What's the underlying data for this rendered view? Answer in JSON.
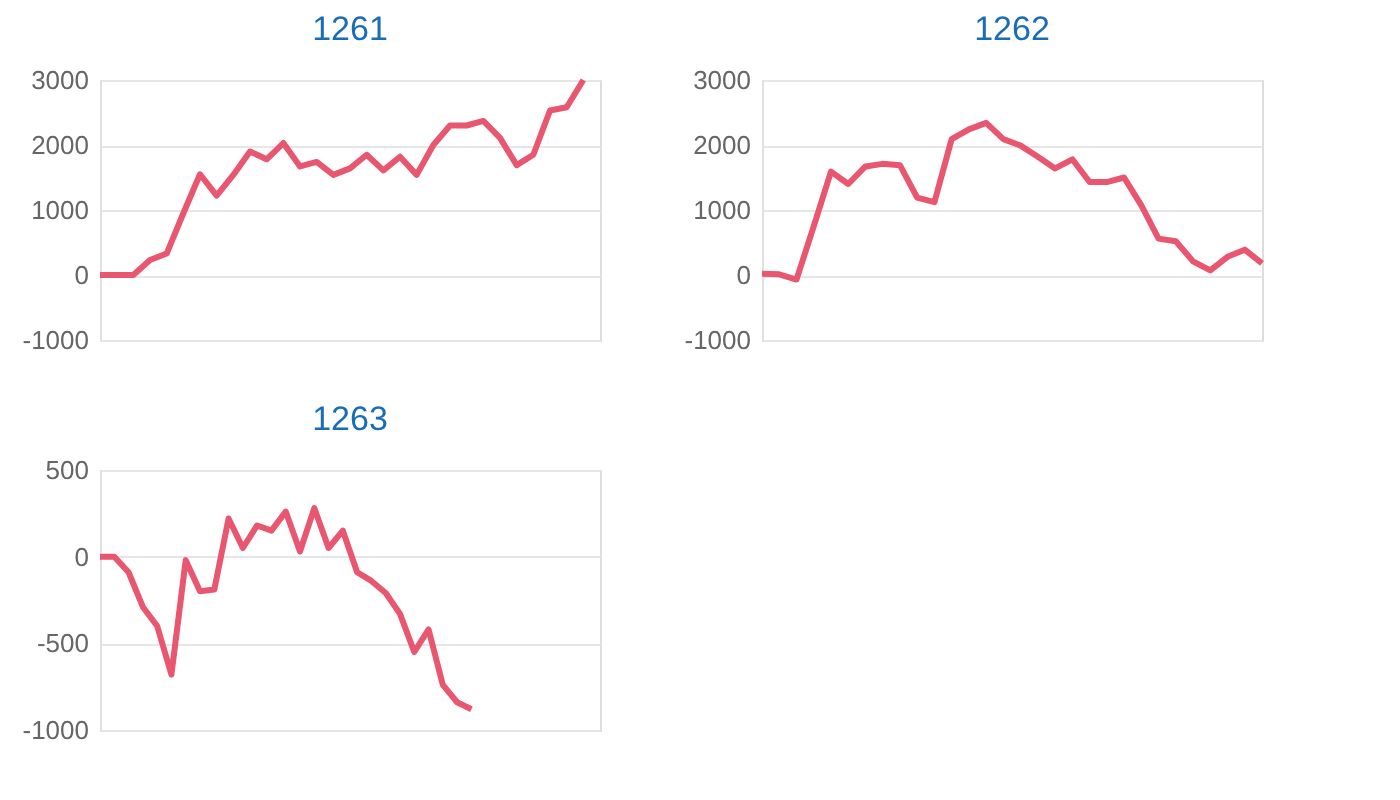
{
  "chart_data": [
    {
      "type": "line",
      "title": "1261",
      "categories": [
        null,
        null,
        null,
        null,
        null,
        null,
        null,
        null,
        null,
        null,
        null,
        null,
        null,
        null,
        null,
        null,
        null,
        null,
        null,
        null,
        null,
        null,
        null,
        null,
        null,
        null,
        null,
        null,
        null,
        null,
        null
      ],
      "series": [
        {
          "color": "#e9566f",
          "values": [
            0,
            0,
            0,
            230,
            330,
            950,
            1550,
            1220,
            1540,
            1900,
            1780,
            2030,
            1670,
            1740,
            1540,
            1640,
            1850,
            1610,
            1820,
            1540,
            2000,
            2300,
            2300,
            2370,
            2110,
            1690,
            1850,
            2530,
            2580,
            3000,
            null
          ]
        }
      ],
      "ylim": [
        -1000,
        3000
      ],
      "yticks": [
        -1000,
        0,
        1000,
        2000,
        3000
      ],
      "grid": "y",
      "tick_labels": "y",
      "marker": "none",
      "line_style": "solid"
    },
    {
      "type": "line",
      "title": "1262",
      "categories": [
        null,
        null,
        null,
        null,
        null,
        null,
        null,
        null,
        null,
        null,
        null,
        null,
        null,
        null,
        null,
        null,
        null,
        null,
        null,
        null,
        null,
        null,
        null,
        null,
        null,
        null,
        null,
        null,
        null,
        null
      ],
      "series": [
        {
          "color": "#e9566f",
          "values": [
            20,
            10,
            -70,
            750,
            1590,
            1400,
            1670,
            1710,
            1690,
            1190,
            1120,
            2090,
            2240,
            2340,
            2090,
            1990,
            1820,
            1640,
            1780,
            1430,
            1430,
            1500,
            1070,
            560,
            520,
            210,
            70,
            280,
            390,
            180
          ]
        }
      ],
      "ylim": [
        -1000,
        3000
      ],
      "yticks": [
        -1000,
        0,
        1000,
        2000,
        3000
      ],
      "grid": "y",
      "tick_labels": "y",
      "marker": "none",
      "line_style": "solid"
    },
    {
      "type": "line",
      "title": "1263",
      "categories": [
        null,
        null,
        null,
        null,
        null,
        null,
        null,
        null,
        null,
        null,
        null,
        null,
        null,
        null,
        null,
        null,
        null,
        null,
        null,
        null,
        null,
        null,
        null,
        null,
        null,
        null,
        null,
        null,
        null,
        null,
        null,
        null,
        null,
        null,
        null,
        null
      ],
      "series": [
        {
          "color": "#e9566f",
          "values": [
            0,
            0,
            -90,
            -290,
            -400,
            -680,
            -20,
            -200,
            -190,
            220,
            50,
            180,
            150,
            260,
            30,
            280,
            50,
            150,
            -90,
            -140,
            -210,
            -330,
            -550,
            -420,
            -740,
            -840,
            -880,
            null,
            null,
            null,
            null,
            null,
            null,
            null,
            null,
            null
          ]
        }
      ],
      "ylim": [
        -1000,
        500
      ],
      "yticks": [
        -1000,
        -500,
        0,
        500
      ],
      "grid": "y",
      "tick_labels": "y",
      "marker": "none",
      "line_style": "solid"
    }
  ]
}
